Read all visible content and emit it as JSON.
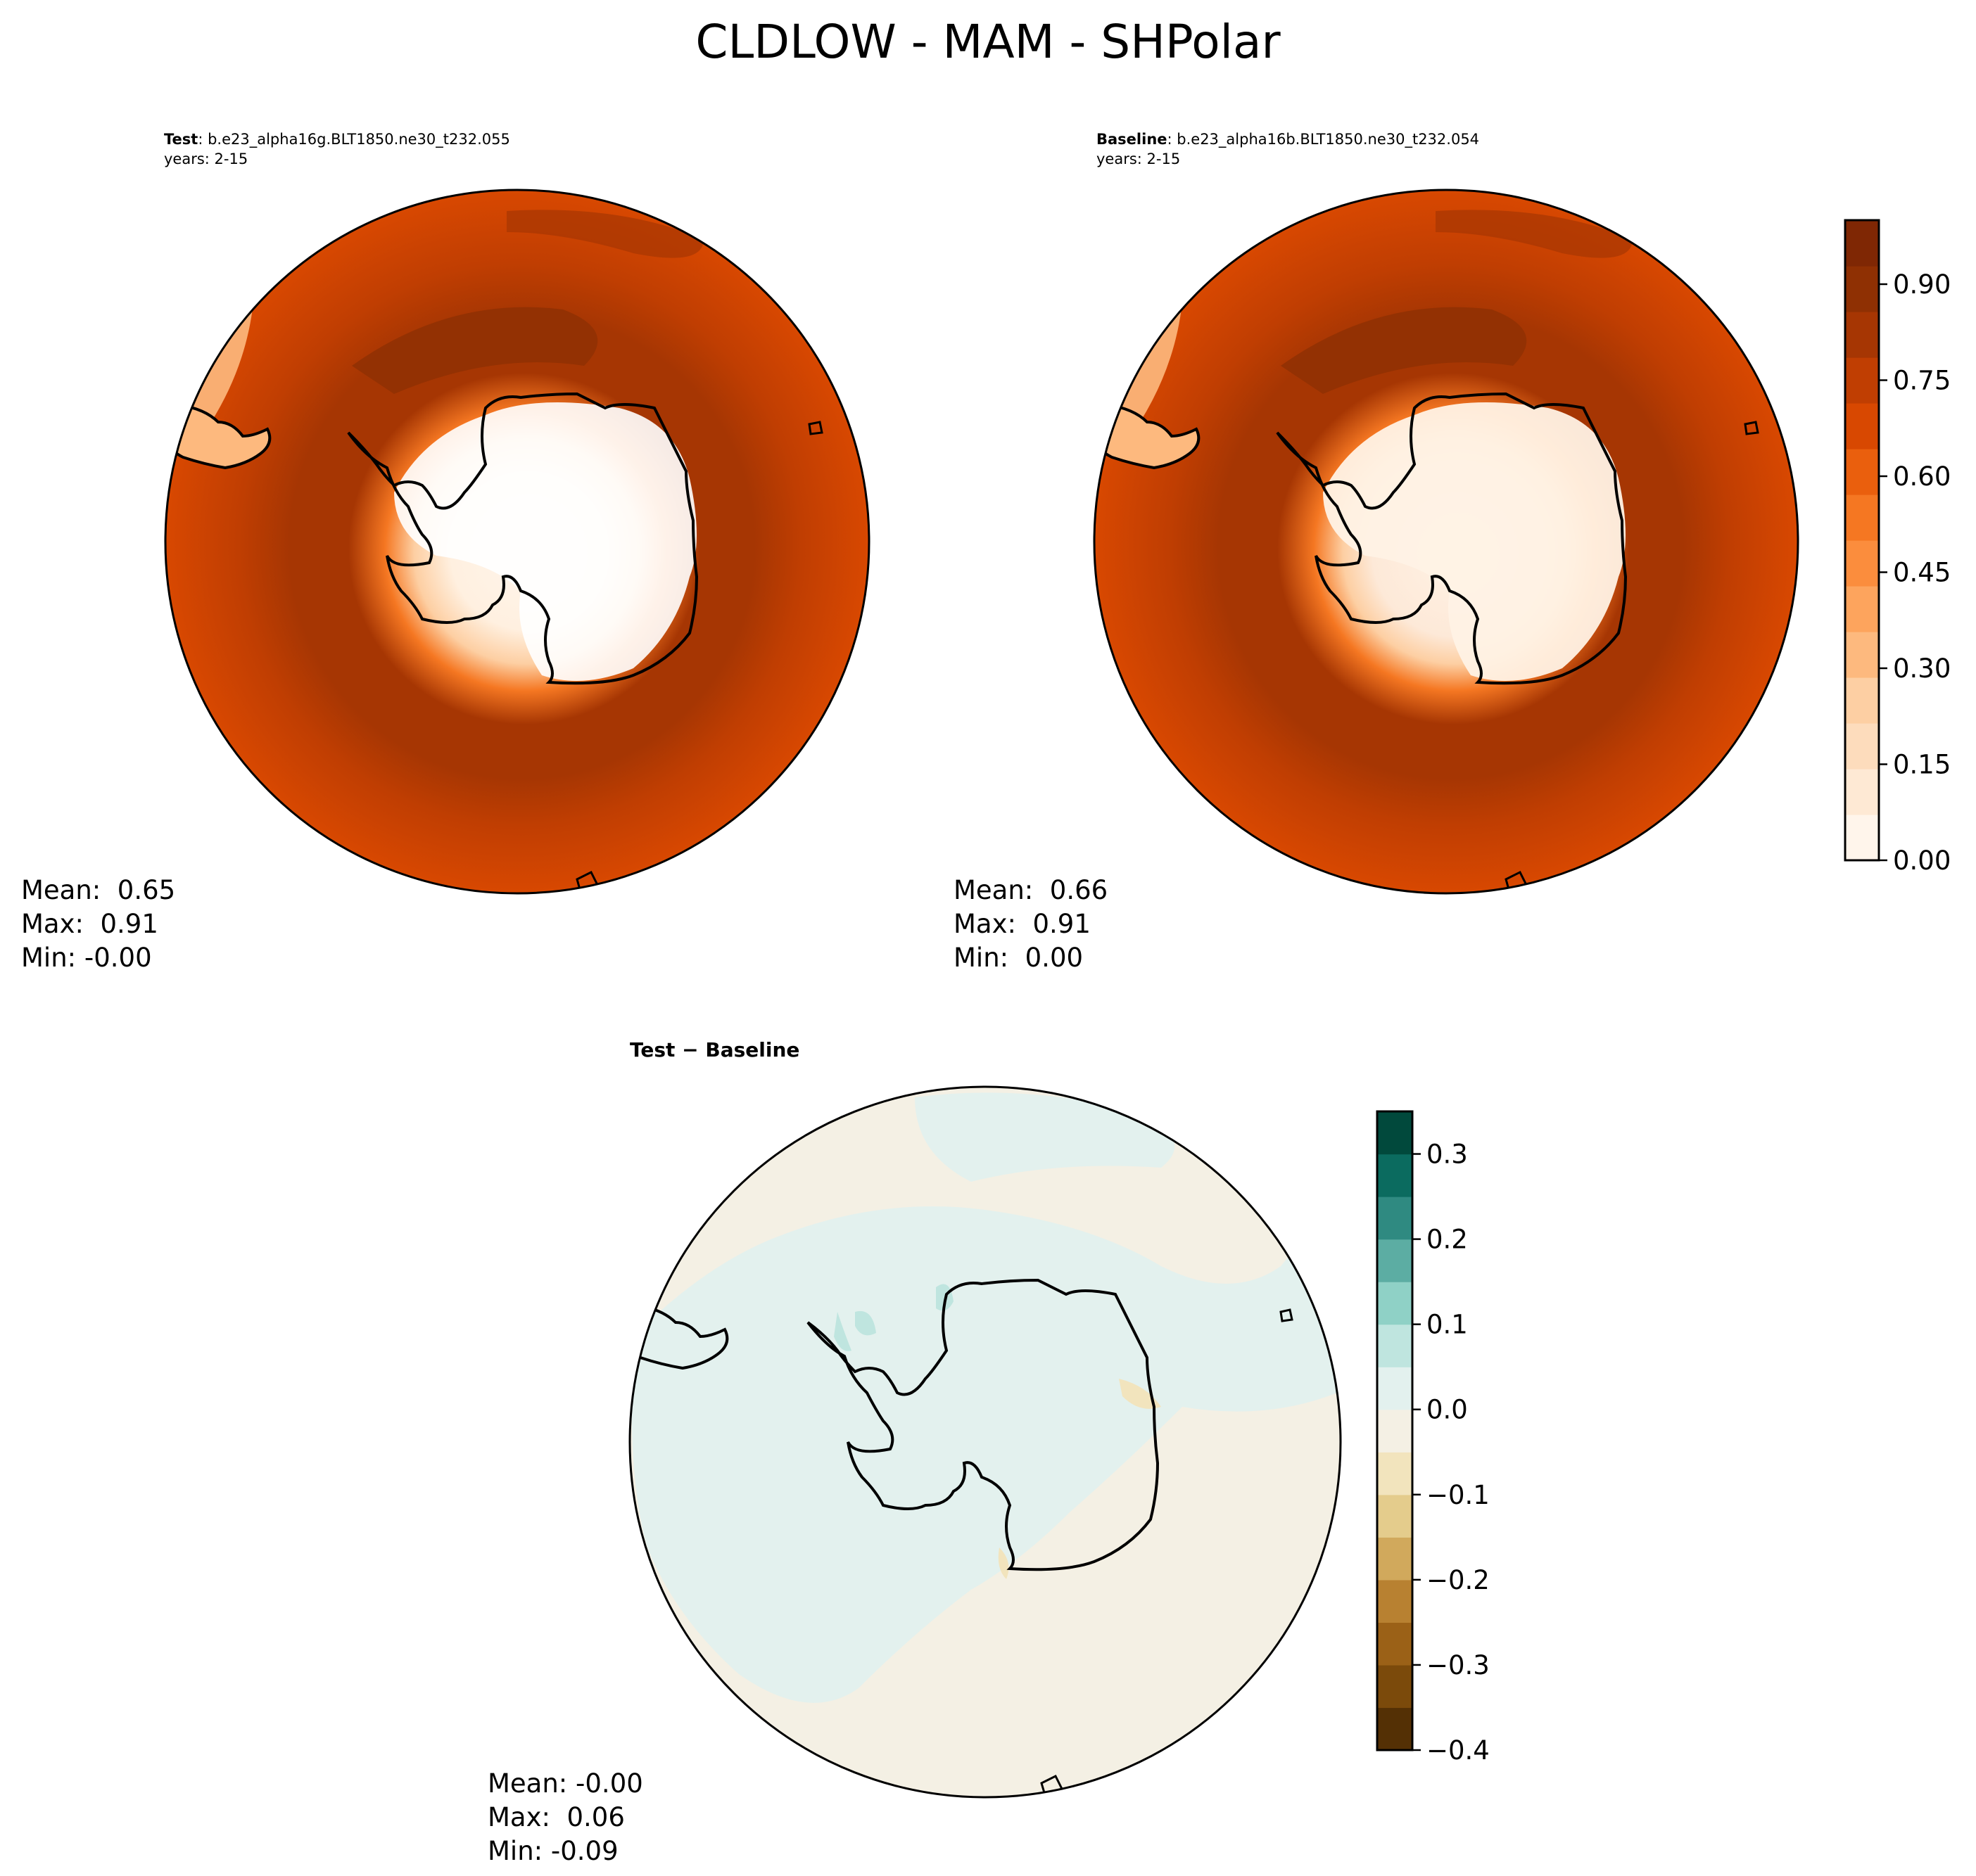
{
  "figure": {
    "suptitle": "CLDLOW - MAM - SHPolar"
  },
  "chart_data": [
    {
      "type": "heatmap",
      "panel": "test",
      "title_bold": "Test",
      "title_rest": ": b.e23_alpha16g.BLT1850.ne30_t232.055",
      "years": "years: 2-15",
      "projection": "south polar stereographic",
      "stats": {
        "mean": "Mean:  0.65",
        "max": "Max:  0.91",
        "min": "Min: -0.00"
      }
    },
    {
      "type": "heatmap",
      "panel": "baseline",
      "title_bold": "Baseline",
      "title_rest": ": b.e23_alpha16b.BLT1850.ne30_t232.054",
      "years": "years: 2-15",
      "projection": "south polar stereographic",
      "stats": {
        "mean": "Mean:  0.66",
        "max": "Max:  0.91",
        "min": "Min:  0.00"
      },
      "colorbar": {
        "cmap": "Oranges",
        "range": [
          0.0,
          1.0
        ],
        "ticks": [
          0.0,
          0.15,
          0.3,
          0.45,
          0.6,
          0.75,
          0.9
        ],
        "tick_labels": [
          "0.00",
          "0.15",
          "0.30",
          "0.45",
          "0.60",
          "0.75",
          "0.90"
        ]
      }
    },
    {
      "type": "heatmap",
      "panel": "difference",
      "title_bold": "Test − Baseline",
      "projection": "south polar stereographic",
      "stats": {
        "mean": "Mean: -0.00",
        "max": "Max:  0.06",
        "min": "Min: -0.09"
      },
      "colorbar": {
        "cmap": "BrBG",
        "range": [
          -0.4,
          0.35
        ],
        "ticks": [
          -0.4,
          -0.3,
          -0.2,
          -0.1,
          0.0,
          0.1,
          0.2,
          0.3
        ],
        "tick_labels": [
          "−0.4",
          "−0.3",
          "−0.2",
          "−0.1",
          "0.0",
          "0.1",
          "0.2",
          "0.3"
        ]
      }
    }
  ],
  "colors": {
    "oranges": [
      "#fff5eb",
      "#fee9d4",
      "#fddcbc",
      "#fdcfa3",
      "#fdb97e",
      "#fda45d",
      "#fb8d3d",
      "#f57722",
      "#ea5f0d",
      "#d84801",
      "#c03e02",
      "#a63603",
      "#8f3003",
      "#7f2704"
    ],
    "brbg": [
      "#543005",
      "#7b4a0b",
      "#9b6117",
      "#b88131",
      "#d1a95c",
      "#e4cc8c",
      "#f2e4bd",
      "#f4f0e4",
      "#e3f1ee",
      "#bfe5df",
      "#8fd1c6",
      "#5cada3",
      "#2f8a81",
      "#0b6b5f",
      "#01493c"
    ]
  }
}
